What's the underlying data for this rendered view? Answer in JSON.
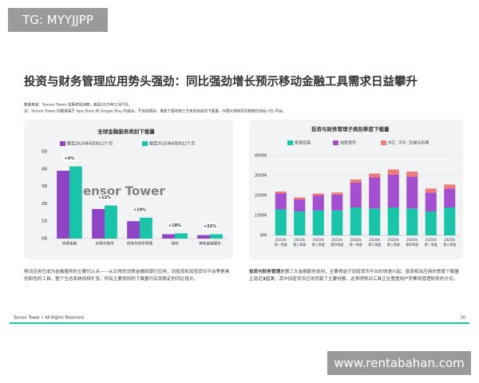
{
  "watermark_top": "TG: MYYJJPP",
  "watermark_bottom": "www.rentabahan.com",
  "title": "投资与财务管理应用势头强劲：同比强劲增长预示移动金融工具需求日益攀升",
  "source": [
    "数据来源：Sensor Tower 应用表现洞察，截至2025年11月7日。",
    "注：Sensor Tower 的数据基于 App Store 和 Google Play 的组合，不包括预装、重复下载和第三方安卓商店的下载量。中国大陆地区的数据仅包括 iOS 平台。"
  ],
  "chart_data": [
    {
      "type": "bar",
      "title": "全球金融服务类别下载量",
      "watermark": "Sensor Tower",
      "categories": [
        "消费金融",
        "信用与借贷",
        "投资与财务管理",
        "保险",
        "其他金融服务"
      ],
      "series": [
        {
          "name": "截至2024年6月的12个月",
          "color": "#8e44c4",
          "values": [
            3.9,
            1.7,
            1.0,
            0.25,
            0.2
          ]
        },
        {
          "name": "截至2025年6月的12个月",
          "color": "#19c4a8",
          "values": [
            4.15,
            1.9,
            1.2,
            0.3,
            0.25
          ]
        }
      ],
      "annotations": [
        "+6%",
        "+12%",
        "+19%",
        "+18%",
        "+21%"
      ],
      "ylim": [
        0,
        5
      ],
      "yticks": [
        {
          "value": 0,
          "label": "0B"
        },
        {
          "value": 1,
          "label": "1B"
        },
        {
          "value": 2,
          "label": "2B"
        },
        {
          "value": 3,
          "label": "3B"
        },
        {
          "value": 4,
          "label": "4B"
        },
        {
          "value": 5,
          "label": "5B"
        }
      ],
      "grid": false
    },
    {
      "type": "stacked_bar",
      "title": "投资与财务管理子类别季度下载量",
      "categories": [
        "2023年\n第一季度",
        "2023年\n第二季度",
        "2023年\n第三季度",
        "2023年\n第四季度",
        "2024年\n第一季度",
        "2024年\n第二季度",
        "2024年\n第三季度",
        "2024年\n第四季度",
        "2025年\n第一季度",
        "2025年\n第二季度"
      ],
      "series": [
        {
          "name": "投资应用",
          "color": "#19c4a8",
          "values": [
            130,
            120,
            125,
            125,
            140,
            135,
            140,
            135,
            120,
            140
          ]
        },
        {
          "name": "加密货币",
          "color": "#a44fd0",
          "values": [
            80,
            60,
            75,
            80,
            125,
            155,
            165,
            160,
            95,
            95
          ]
        },
        {
          "name": "外汇（FX）交易与市场",
          "color": "#f07a78",
          "values": [
            10,
            10,
            10,
            10,
            15,
            20,
            25,
            25,
            20,
            20
          ]
        }
      ],
      "ylim": [
        0,
        400
      ],
      "yticks": [
        {
          "value": 0,
          "label": "0M"
        },
        {
          "value": 100,
          "label": "100M"
        },
        {
          "value": 200,
          "label": "200M"
        },
        {
          "value": 300,
          "label": "300M"
        },
        {
          "value": 400,
          "label": "400M"
        }
      ],
      "grid": true
    }
  ],
  "paragraphs": [
    [
      "移动应用已成为金融服务的主要切入点——从日常的消费金融和银行应用，到投资和加密货币平台等更具创新性的工具。整个生态系统持续扩张，所有主要类别的下载量均实现稳定的同比增长。"
    ],
    [
      "投资与财务管理",
      "是第三大金融服务类别，主要得益于加密货币平台的快速兴起。投资相关应用的季度下载量正逼近",
      "3亿次",
      "，其中加密货币应用贡献了主要份额。这表明移动工具正在重塑用户积累和管理财务的方式。"
    ]
  ],
  "footer": {
    "brand": "Sensor Tower • All Rights Reserved",
    "page": "10"
  }
}
